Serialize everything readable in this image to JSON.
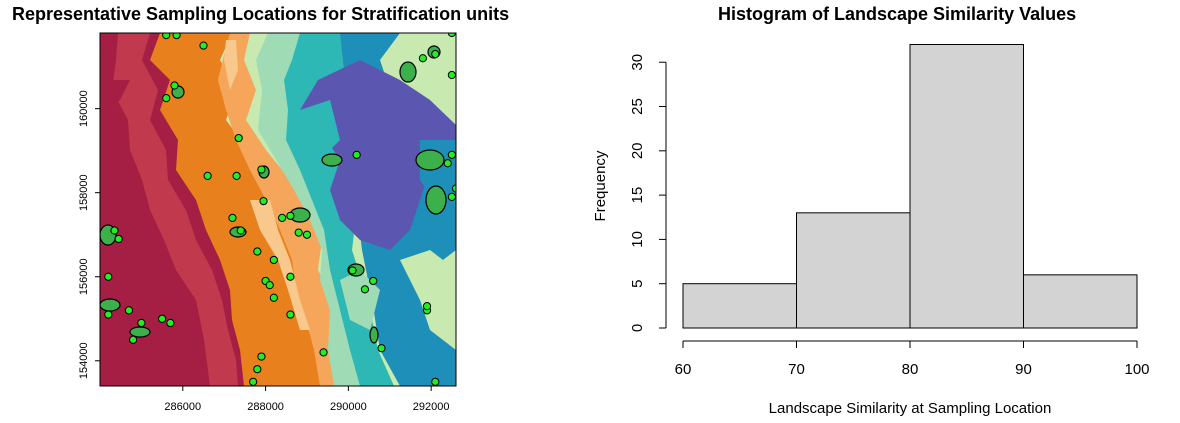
{
  "chart_data": [
    {
      "type": "map",
      "title": "Representative Sampling Locations for Stratification units",
      "x_ticks": [
        286000,
        288000,
        290000,
        292000
      ],
      "y_ticks": [
        154000,
        156000,
        158000,
        160000
      ],
      "xlim": [
        284000,
        292600
      ],
      "ylim": [
        153400,
        161800
      ],
      "colors": {
        "dark_red": "#a51e43",
        "red": "#c0394d",
        "orange": "#e8801e",
        "light_orange": "#f5a65a",
        "peach": "#f8c88d",
        "pale_green": "#c8eab0",
        "light_green": "#9fdcb5",
        "teal": "#2eb8b5",
        "blue": "#1e8fb8",
        "indigo": "#5b57b0",
        "unit_fill": "#3cb04a",
        "point": "#22ee22"
      },
      "points": [
        [
          285600,
          161750
        ],
        [
          285850,
          161750
        ],
        [
          286500,
          161500
        ],
        [
          285800,
          160550
        ],
        [
          285600,
          160250
        ],
        [
          287350,
          159300
        ],
        [
          286600,
          158400
        ],
        [
          287300,
          158400
        ],
        [
          287900,
          158550
        ],
        [
          287950,
          157800
        ],
        [
          287200,
          157400
        ],
        [
          287400,
          157100
        ],
        [
          287800,
          156600
        ],
        [
          288400,
          157400
        ],
        [
          288600,
          157450
        ],
        [
          288800,
          157050
        ],
        [
          288200,
          156400
        ],
        [
          288600,
          156000
        ],
        [
          288000,
          155900
        ],
        [
          288200,
          155500
        ],
        [
          288100,
          155800
        ],
        [
          288600,
          155100
        ],
        [
          290100,
          156150
        ],
        [
          290600,
          155900
        ],
        [
          290400,
          155700
        ],
        [
          289400,
          154200
        ],
        [
          290800,
          154300
        ],
        [
          287900,
          154100
        ],
        [
          287800,
          153800
        ],
        [
          287700,
          153500
        ],
        [
          284200,
          156000
        ],
        [
          284200,
          155100
        ],
        [
          284350,
          157100
        ],
        [
          284450,
          156900
        ],
        [
          284700,
          155200
        ],
        [
          285000,
          154900
        ],
        [
          285500,
          155000
        ],
        [
          285700,
          154900
        ],
        [
          284800,
          154500
        ],
        [
          291900,
          155200
        ],
        [
          291900,
          155300
        ],
        [
          291800,
          161200
        ],
        [
          292100,
          161300
        ],
        [
          292500,
          161800
        ],
        [
          292500,
          160800
        ],
        [
          292500,
          158900
        ],
        [
          292400,
          158700
        ],
        [
          292600,
          158100
        ],
        [
          292500,
          157900
        ],
        [
          290200,
          158900
        ],
        [
          292100,
          153500
        ],
        [
          289000,
          157000
        ]
      ]
    },
    {
      "type": "bar",
      "title": "Histogram of Landscape Similarity Values",
      "xlabel": "Landscape Similarity at Sampling Location",
      "ylabel": "Frequency",
      "categories": [
        "60-70",
        "70-80",
        "80-90",
        "90-100"
      ],
      "bin_edges": [
        60,
        70,
        80,
        90,
        100
      ],
      "values": [
        5,
        13,
        32,
        6
      ],
      "x_ticks": [
        60,
        70,
        80,
        90,
        100
      ],
      "y_ticks": [
        0,
        5,
        10,
        15,
        20,
        25,
        30
      ],
      "xlim": [
        60,
        100
      ],
      "ylim": [
        0,
        32
      ],
      "bar_color": "#d3d3d3"
    }
  ]
}
